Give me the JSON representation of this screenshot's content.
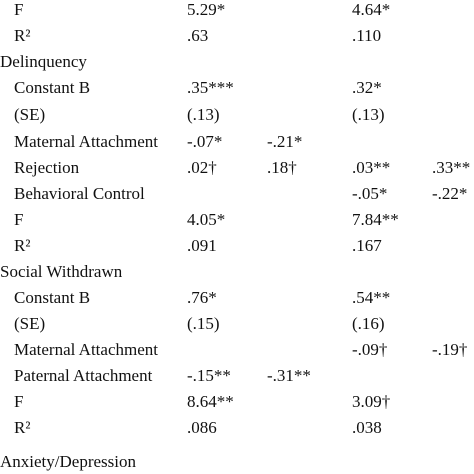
{
  "rows": [
    {
      "label": "F",
      "c1": "5.29*",
      "c2": "",
      "c3": "4.64*",
      "c4": "",
      "section": false
    },
    {
      "label": "R²",
      "c1": ".63",
      "c2": "",
      "c3": ".110",
      "c4": "",
      "section": false
    },
    {
      "label": "Delinquency",
      "c1": "",
      "c2": "",
      "c3": "",
      "c4": "",
      "section": true
    },
    {
      "label": "Constant B",
      "c1": ".35***",
      "c2": "",
      "c3": ".32*",
      "c4": "",
      "section": false
    },
    {
      "label": "(SE)",
      "c1": "(.13)",
      "c2": "",
      "c3": "(.13)",
      "c4": "",
      "section": false
    },
    {
      "label": "Maternal Attachment",
      "c1": "-.07*",
      "c2": "-.21*",
      "c3": "",
      "c4": "",
      "section": false
    },
    {
      "label": "Rejection",
      "c1": ".02†",
      "c2": ".18†",
      "c3": ".03**",
      "c4": ".33**",
      "section": false
    },
    {
      "label": "Behavioral Control",
      "c1": "",
      "c2": "",
      "c3": "-.05*",
      "c4": "-.22*",
      "section": false
    },
    {
      "label": "F",
      "c1": "4.05*",
      "c2": "",
      "c3": "7.84**",
      "c4": "",
      "section": false
    },
    {
      "label": "R²",
      "c1": ".091",
      "c2": "",
      "c3": ".167",
      "c4": "",
      "section": false
    },
    {
      "label": "Social Withdrawn",
      "c1": "",
      "c2": "",
      "c3": "",
      "c4": "",
      "section": true
    },
    {
      "label": "Constant B",
      "c1": ".76*",
      "c2": "",
      "c3": ".54**",
      "c4": "",
      "section": false
    },
    {
      "label": "(SE)",
      "c1": "(.15)",
      "c2": "",
      "c3": "(.16)",
      "c4": "",
      "section": false
    },
    {
      "label": "Maternal Attachment",
      "c1": "",
      "c2": "",
      "c3": "-.09†",
      "c4": "-.19†",
      "section": false
    },
    {
      "label": "Paternal Attachment",
      "c1": "-.15**",
      "c2": "-.31**",
      "c3": "",
      "c4": "",
      "section": false
    },
    {
      "label": "F",
      "c1": "8.64**",
      "c2": "",
      "c3": "3.09†",
      "c4": "",
      "section": false
    },
    {
      "label": "R²",
      "c1": ".086",
      "c2": "",
      "c3": ".038",
      "c4": "",
      "section": false
    },
    {
      "label": "Anxiety/Depression",
      "c1": "",
      "c2": "",
      "c3": "",
      "c4": "",
      "section": true
    }
  ]
}
